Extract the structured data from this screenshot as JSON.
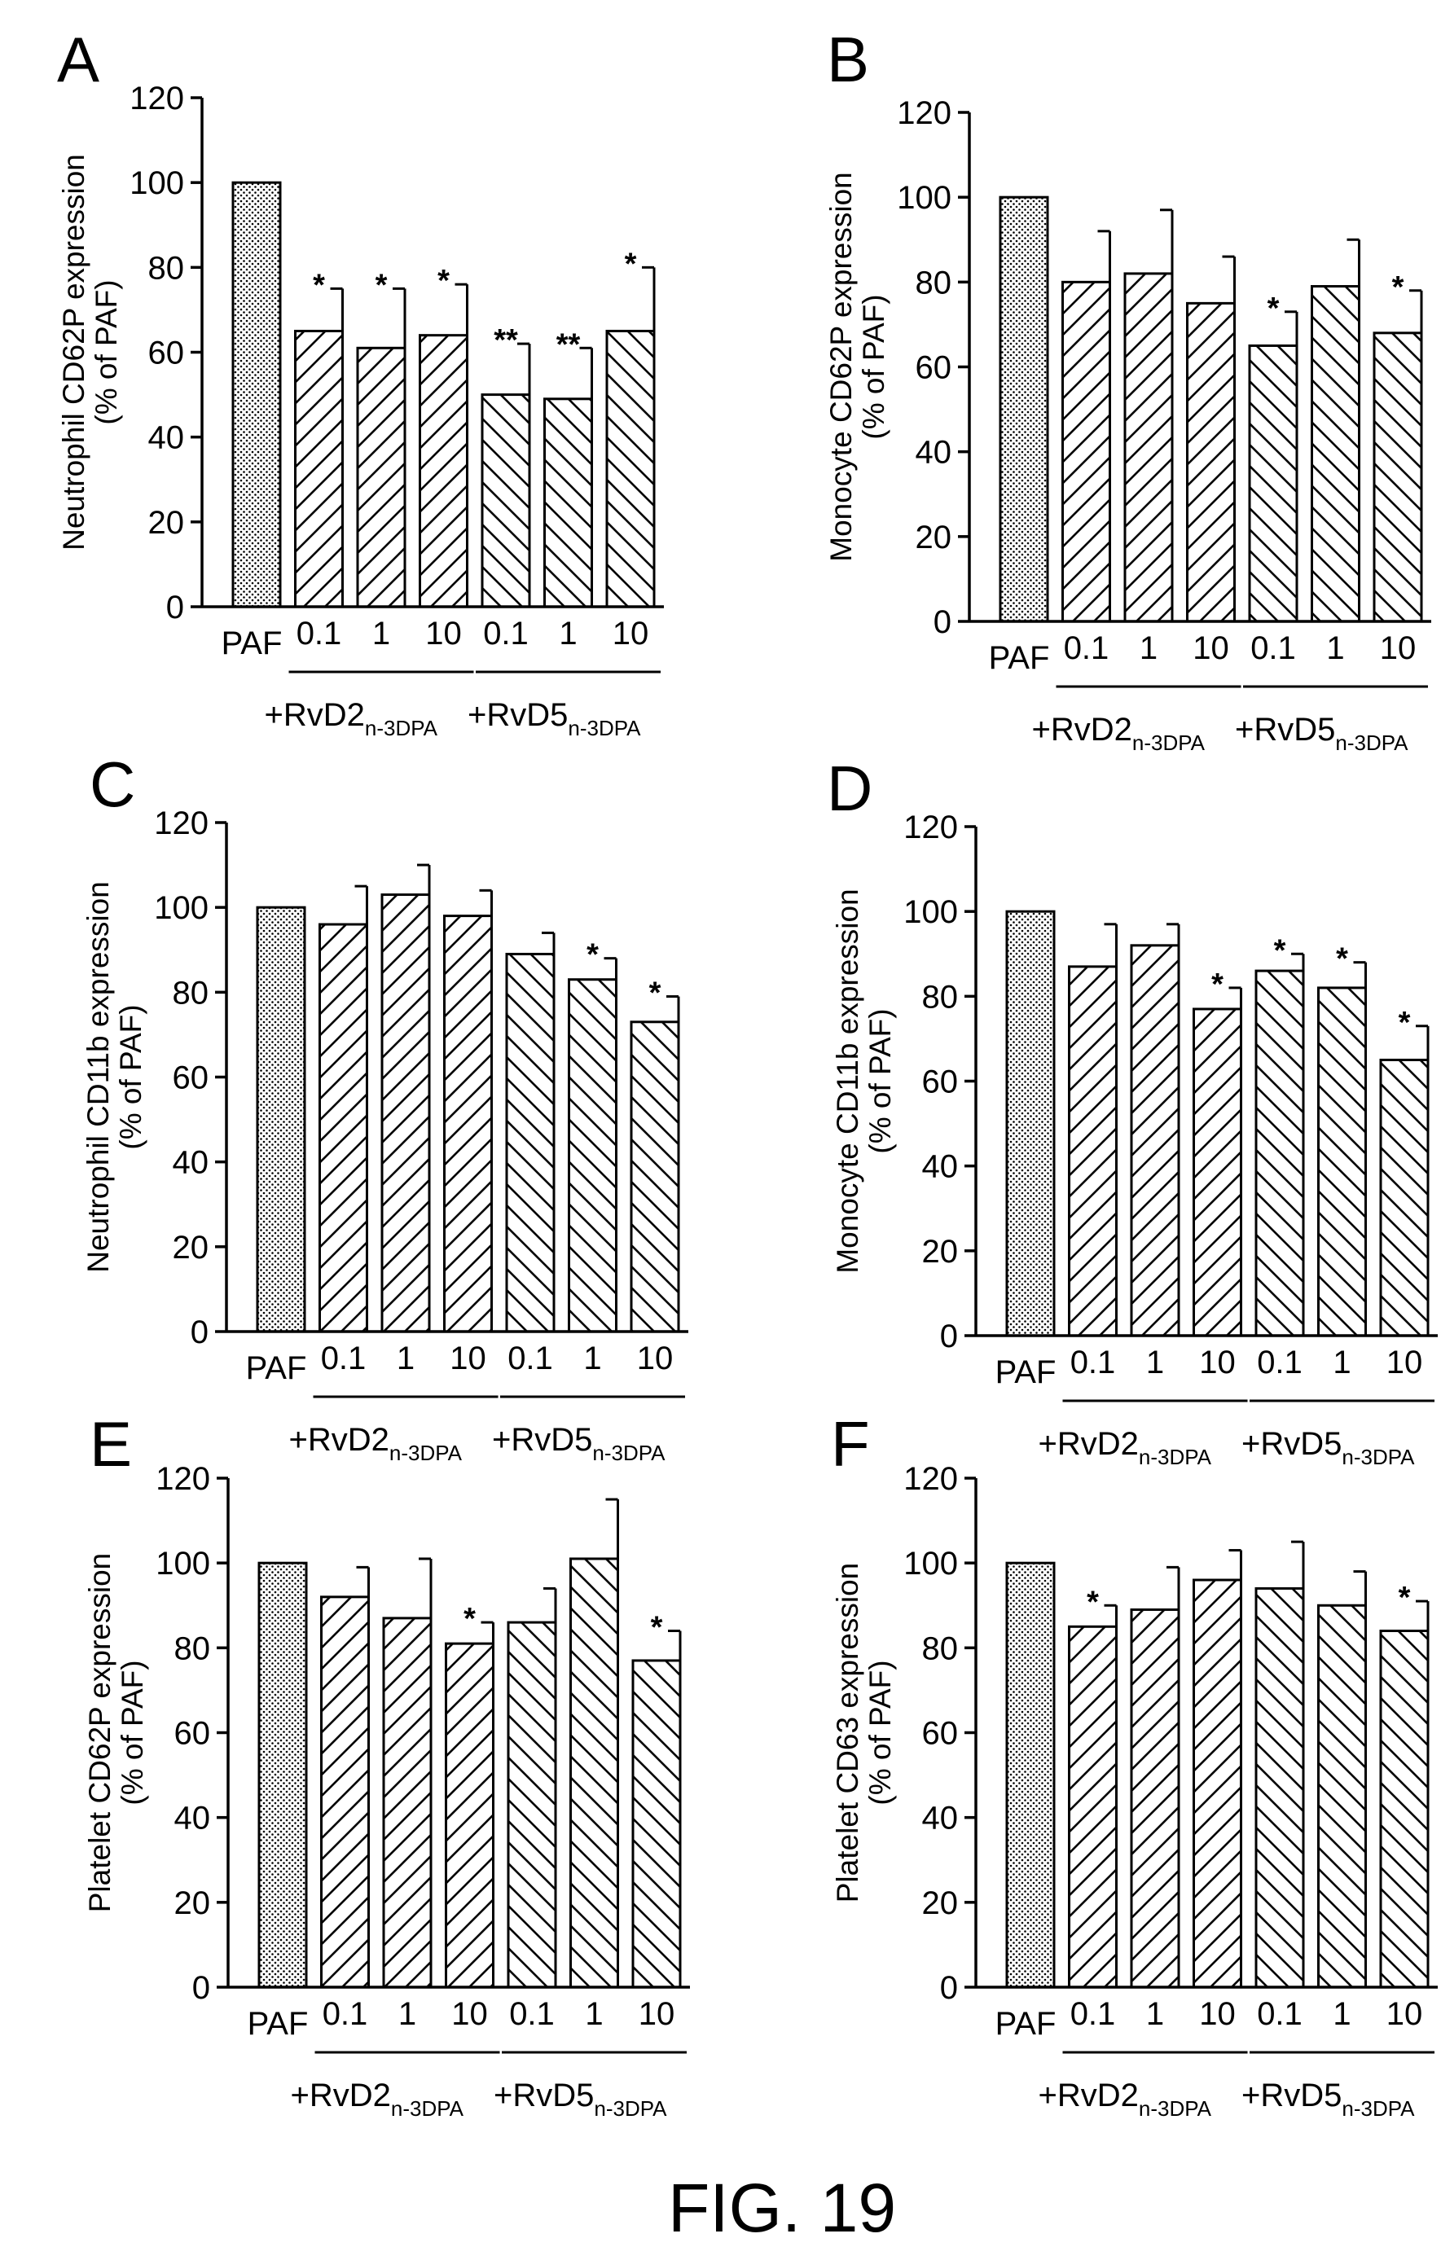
{
  "figure_caption": "FIG. 19",
  "chart_data": [
    {
      "panel": "A",
      "type": "bar",
      "ylabel": [
        "Neutrophil CD62P expression",
        "(% of PAF)"
      ],
      "ylim": [
        0,
        120
      ],
      "yticks": [
        0,
        20,
        40,
        60,
        80,
        100,
        120
      ],
      "categories": [
        "PAF",
        "0.1",
        "1",
        "10",
        "0.1",
        "1",
        "10"
      ],
      "groups": [
        {
          "label": "+RvD2",
          "subscript": "n-3DPA",
          "start": 1,
          "end": 3
        },
        {
          "label": "+RvD5",
          "subscript": "n-3DPA",
          "start": 4,
          "end": 6
        }
      ],
      "values": [
        100,
        65,
        61,
        64,
        50,
        49,
        65
      ],
      "errors": [
        0,
        10,
        14,
        12,
        12,
        12,
        15
      ],
      "significance": [
        "",
        "*",
        "*",
        "*",
        "**",
        "**",
        "*"
      ],
      "fills": [
        "dots",
        "hatch-right",
        "hatch-right",
        "hatch-right",
        "hatch-left",
        "hatch-left",
        "hatch-left"
      ]
    },
    {
      "panel": "B",
      "type": "bar",
      "ylabel": [
        "Monocyte CD62P expression",
        "(% of PAF)"
      ],
      "ylim": [
        0,
        120
      ],
      "yticks": [
        0,
        20,
        40,
        60,
        80,
        100,
        120
      ],
      "categories": [
        "PAF",
        "0.1",
        "1",
        "10",
        "0.1",
        "1",
        "10"
      ],
      "groups": [
        {
          "label": "+RvD2",
          "subscript": "n-3DPA",
          "start": 1,
          "end": 3
        },
        {
          "label": "+RvD5",
          "subscript": "n-3DPA",
          "start": 4,
          "end": 6
        }
      ],
      "values": [
        100,
        80,
        82,
        75,
        65,
        79,
        68
      ],
      "errors": [
        0,
        12,
        15,
        11,
        8,
        11,
        10
      ],
      "significance": [
        "",
        "",
        "",
        "",
        "*",
        "",
        "*"
      ],
      "fills": [
        "dots",
        "hatch-right",
        "hatch-right",
        "hatch-right",
        "hatch-left",
        "hatch-left",
        "hatch-left"
      ]
    },
    {
      "panel": "C",
      "type": "bar",
      "ylabel": [
        "Neutrophil CD11b expression",
        "(% of PAF)"
      ],
      "ylim": [
        0,
        120
      ],
      "yticks": [
        0,
        20,
        40,
        60,
        80,
        100,
        120
      ],
      "categories": [
        "PAF",
        "0.1",
        "1",
        "10",
        "0.1",
        "1",
        "10"
      ],
      "groups": [
        {
          "label": "+RvD2",
          "subscript": "n-3DPA",
          "start": 1,
          "end": 3
        },
        {
          "label": "+RvD5",
          "subscript": "n-3DPA",
          "start": 4,
          "end": 6
        }
      ],
      "values": [
        100,
        96,
        103,
        98,
        89,
        83,
        73
      ],
      "errors": [
        0,
        9,
        7,
        6,
        5,
        5,
        6
      ],
      "significance": [
        "",
        "",
        "",
        "",
        "",
        "*",
        "*"
      ],
      "fills": [
        "dots",
        "hatch-right",
        "hatch-right",
        "hatch-right",
        "hatch-left",
        "hatch-left",
        "hatch-left"
      ]
    },
    {
      "panel": "D",
      "type": "bar",
      "ylabel": [
        "Monocyte CD11b expression",
        "(% of PAF)"
      ],
      "ylim": [
        0,
        120
      ],
      "yticks": [
        0,
        20,
        40,
        60,
        80,
        100,
        120
      ],
      "categories": [
        "PAF",
        "0.1",
        "1",
        "10",
        "0.1",
        "1",
        "10"
      ],
      "groups": [
        {
          "label": "+RvD2",
          "subscript": "n-3DPA",
          "start": 1,
          "end": 3
        },
        {
          "label": "+RvD5",
          "subscript": "n-3DPA",
          "start": 4,
          "end": 6
        }
      ],
      "values": [
        100,
        87,
        92,
        77,
        86,
        82,
        65
      ],
      "errors": [
        0,
        10,
        5,
        5,
        4,
        6,
        8
      ],
      "significance": [
        "",
        "",
        "",
        "*",
        "*",
        "*",
        "*"
      ],
      "fills": [
        "dots",
        "hatch-right",
        "hatch-right",
        "hatch-right",
        "hatch-left",
        "hatch-left",
        "hatch-left"
      ]
    },
    {
      "panel": "E",
      "type": "bar",
      "ylabel": [
        "Platelet CD62P expression",
        "(% of PAF)"
      ],
      "ylim": [
        0,
        120
      ],
      "yticks": [
        0,
        20,
        40,
        60,
        80,
        100,
        120
      ],
      "categories": [
        "PAF",
        "0.1",
        "1",
        "10",
        "0.1",
        "1",
        "10"
      ],
      "groups": [
        {
          "label": "+RvD2",
          "subscript": "n-3DPA",
          "start": 1,
          "end": 3
        },
        {
          "label": "+RvD5",
          "subscript": "n-3DPA",
          "start": 4,
          "end": 6
        }
      ],
      "values": [
        100,
        92,
        87,
        81,
        86,
        101,
        77
      ],
      "errors": [
        0,
        7,
        14,
        5,
        8,
        14,
        7
      ],
      "significance": [
        "",
        "",
        "",
        "*",
        "",
        "",
        "*"
      ],
      "fills": [
        "dots",
        "hatch-right",
        "hatch-right",
        "hatch-right",
        "hatch-left",
        "hatch-left",
        "hatch-left"
      ]
    },
    {
      "panel": "F",
      "type": "bar",
      "ylabel": [
        "Platelet CD63 expression",
        "(% of PAF)"
      ],
      "ylim": [
        0,
        120
      ],
      "yticks": [
        0,
        20,
        40,
        60,
        80,
        100,
        120
      ],
      "categories": [
        "PAF",
        "0.1",
        "1",
        "10",
        "0.1",
        "1",
        "10"
      ],
      "groups": [
        {
          "label": "+RvD2",
          "subscript": "n-3DPA",
          "start": 1,
          "end": 3
        },
        {
          "label": "+RvD5",
          "subscript": "n-3DPA",
          "start": 4,
          "end": 6
        }
      ],
      "values": [
        100,
        85,
        89,
        96,
        94,
        90,
        84
      ],
      "errors": [
        0,
        5,
        10,
        7,
        11,
        8,
        7
      ],
      "significance": [
        "",
        "*",
        "",
        "",
        "",
        "",
        "*"
      ],
      "fills": [
        "dots",
        "hatch-right",
        "hatch-right",
        "hatch-right",
        "hatch-left",
        "hatch-left",
        "hatch-left"
      ]
    }
  ]
}
